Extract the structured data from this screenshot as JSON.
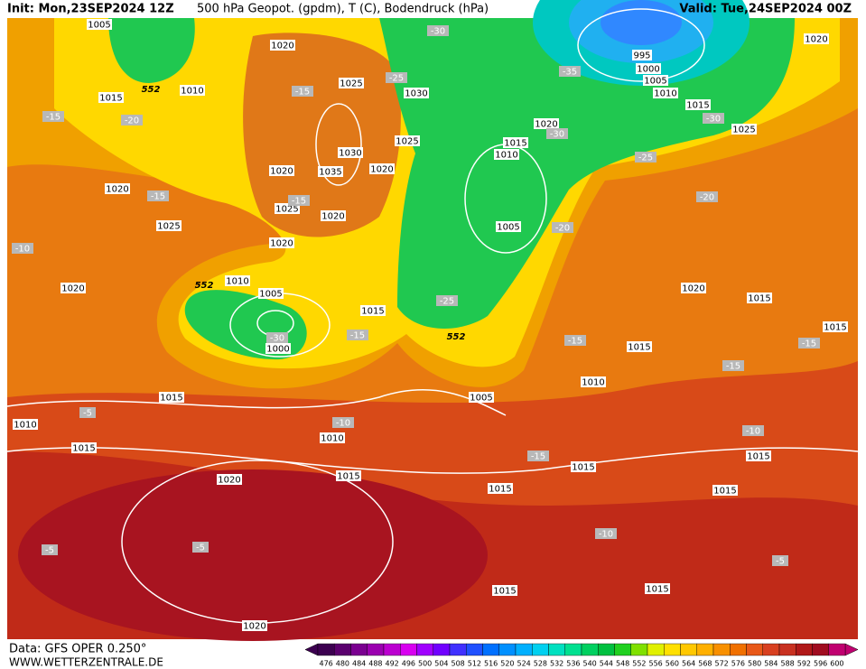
{
  "header": {
    "init": "Init: Mon,23SEP2024 12Z",
    "title": "500 hPa Geopot. (gpdm), T (C), Bodendruck (hPa)",
    "valid": "Valid: Tue,24SEP2024 00Z"
  },
  "isobar_labels": [
    1005,
    1020,
    1010,
    1015,
    1025,
    1030,
    1020,
    1015,
    1010,
    995,
    1000,
    1005,
    1010,
    1015,
    1025,
    1020,
    1025,
    1030,
    1035,
    1020,
    1020,
    1020,
    1025,
    1020,
    1025,
    1020,
    1005,
    1010,
    1005,
    1020,
    1015,
    1000,
    1015,
    1005,
    1010,
    1015,
    1020,
    1015,
    1015,
    1010,
    1015,
    1010,
    1015,
    1015,
    1015,
    1015,
    1015,
    1020,
    1015,
    1015,
    1020
  ],
  "temperature_labels": [
    -15,
    -20,
    -15,
    -25,
    -30,
    -35,
    -30,
    -30,
    -25,
    -20,
    -15,
    -15,
    -10,
    -20,
    -25,
    -30,
    -15,
    -15,
    -15,
    -15,
    -10,
    -10,
    -5,
    -15,
    -10,
    -5,
    -5,
    -5
  ],
  "height_labels": [
    552,
    552,
    552
  ],
  "colorbar": {
    "ticks": [
      476,
      480,
      484,
      488,
      492,
      496,
      500,
      504,
      508,
      512,
      516,
      520,
      524,
      528,
      532,
      536,
      540,
      544,
      548,
      552,
      556,
      560,
      564,
      568,
      572,
      576,
      580,
      584,
      588,
      592,
      596,
      600
    ],
    "colors": [
      "#3c0050",
      "#5a006e",
      "#7a0090",
      "#9b00b0",
      "#bb00d0",
      "#d800f0",
      "#a000ff",
      "#7000ff",
      "#4030ff",
      "#2050ff",
      "#0070ff",
      "#0090ff",
      "#00b0ff",
      "#00d0f0",
      "#00e0c0",
      "#00e090",
      "#00d060",
      "#00c040",
      "#20d020",
      "#80e000",
      "#e0f000",
      "#ffe000",
      "#ffc800",
      "#ffb000",
      "#f89000",
      "#f07000",
      "#e85818",
      "#d84020",
      "#c83020",
      "#b01818",
      "#a00c20",
      "#c00070"
    ]
  },
  "footer": {
    "data": "Data: GFS OPER 0.250°",
    "site": "WWW.WETTERZENTRALE.DE"
  }
}
